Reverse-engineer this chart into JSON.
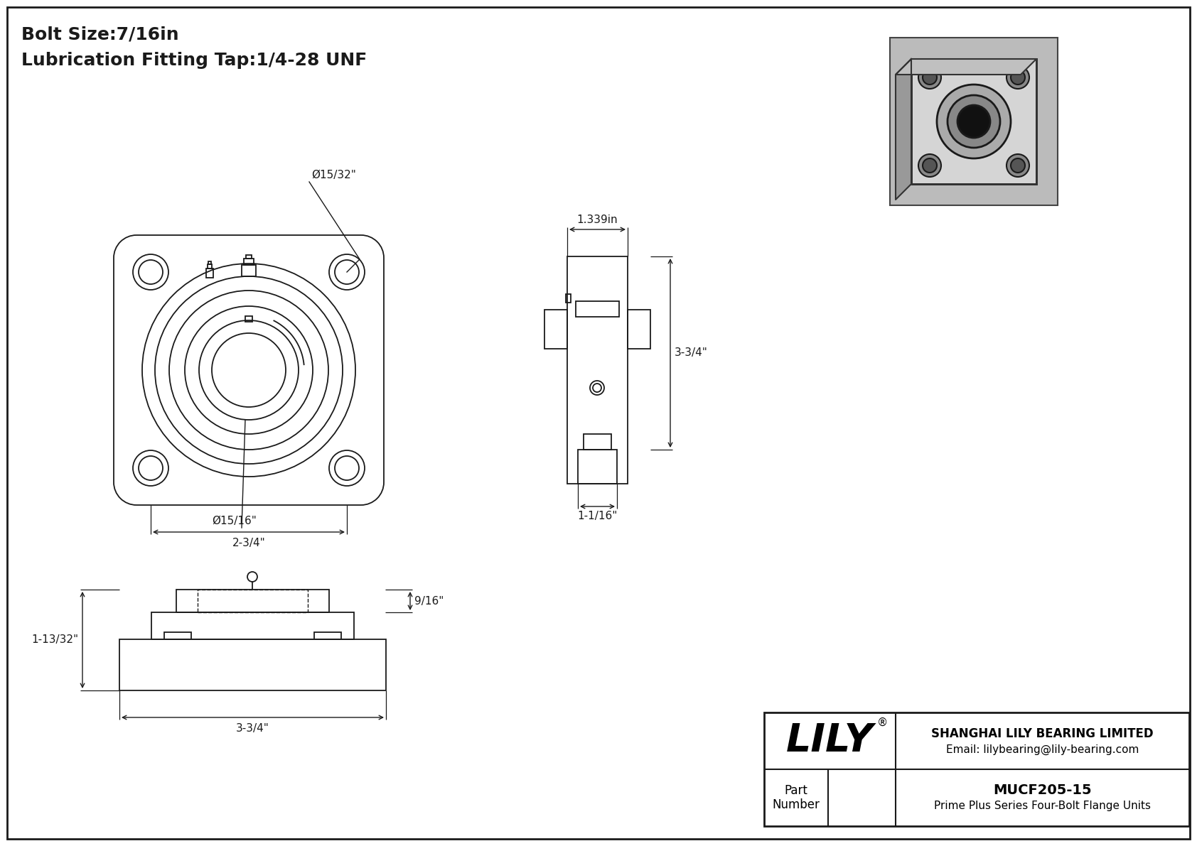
{
  "bg_color": "#ffffff",
  "line_color": "#1a1a1a",
  "title_line1": "Bolt Size:7/16in",
  "title_line2": "Lubrication Fitting Tap:1/4-28 UNF",
  "title_fontsize": 18,
  "company_name": "SHANGHAI LILY BEARING LIMITED",
  "company_email": "Email: lilybearing@lily-bearing.com",
  "part_number": "MUCF205-15",
  "part_desc": "Prime Plus Series Four-Bolt Flange Units",
  "lily_logo": "LILY",
  "dim_bolt_hole": "Ø15/32\"",
  "dim_shaft": "Ø15/16\"",
  "dim_bolt_pattern": "2-3/4\"",
  "dim_width_top": "1.339in",
  "dim_height": "3-3/4\"",
  "dim_base": "1-1/16\"",
  "dim_height2": "9/16\"",
  "dim_left": "1-13/32\"",
  "dim_bottom": "3-3/4\""
}
